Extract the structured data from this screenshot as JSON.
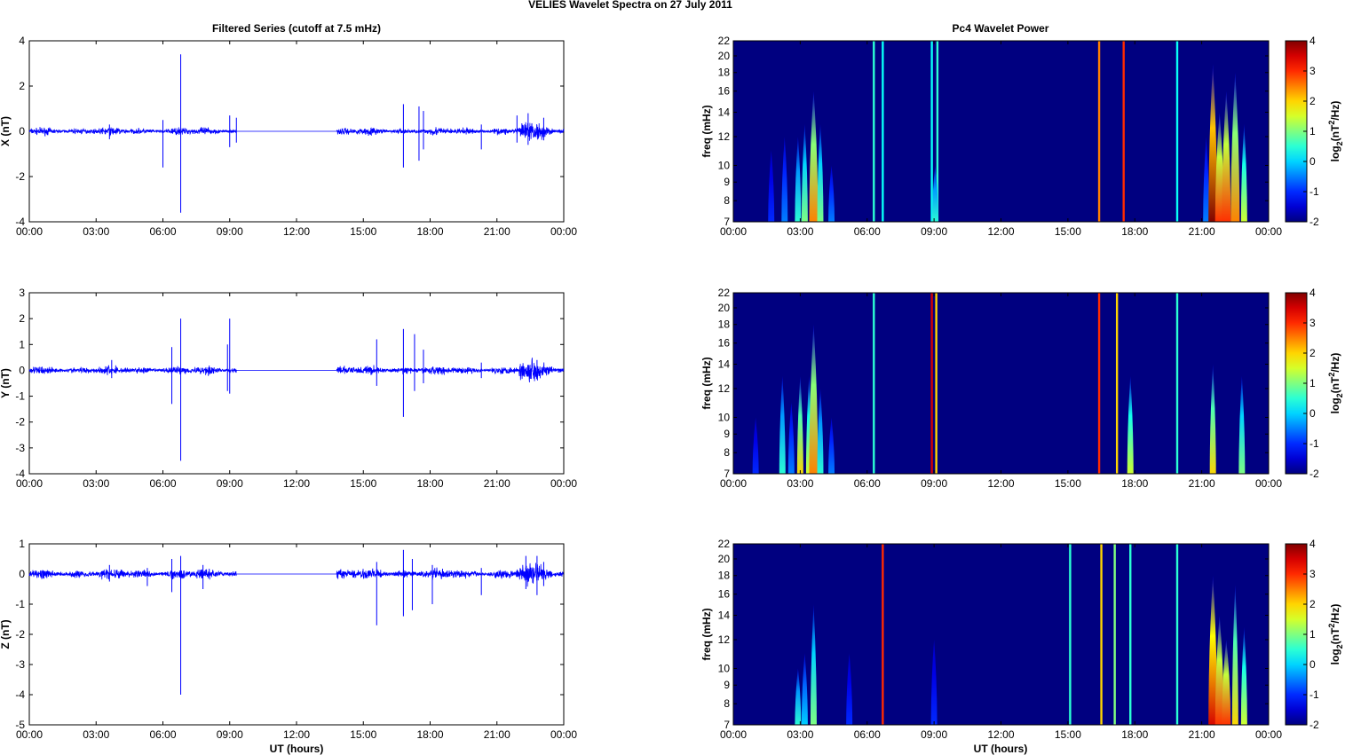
{
  "title": "VELIES Wavelet Spectra on 27 July     2011",
  "chart_data": [
    {
      "type": "line",
      "title": "Filtered Series (cutoff at 7.5 mHz)",
      "xlabel": "UT (hours)",
      "x_ticks": [
        "00:00",
        "03:00",
        "06:00",
        "09:00",
        "12:00",
        "15:00",
        "18:00",
        "21:00",
        "00:00"
      ],
      "xlim_hours": [
        0,
        24
      ],
      "data_gap_hours": [
        9.3,
        13.8
      ],
      "panels": [
        {
          "ylabel": "X (nT)",
          "ylim": [
            -4,
            4
          ],
          "y_ticks": [
            "4",
            "2",
            "0",
            "-2",
            "-4"
          ],
          "noise_amplitude": 0.08,
          "spikes": [
            [
              3.6,
              0.3,
              -0.35
            ],
            [
              6.0,
              0.5,
              -1.6
            ],
            [
              6.8,
              3.4,
              -3.6
            ],
            [
              9.0,
              0.7,
              -0.7
            ],
            [
              9.3,
              0.6,
              -0.5
            ],
            [
              16.8,
              1.2,
              -1.6
            ],
            [
              17.5,
              1.1,
              -1.3
            ],
            [
              17.7,
              0.9,
              -0.8
            ],
            [
              20.3,
              0.3,
              -0.8
            ],
            [
              21.9,
              0.7,
              -0.5
            ],
            [
              22.4,
              0.8,
              -0.6
            ],
            [
              23.1,
              0.6,
              -0.4
            ]
          ]
        },
        {
          "ylabel": "Y (nT)",
          "ylim": [
            -4,
            3
          ],
          "y_ticks": [
            "3",
            "2",
            "1",
            "0",
            "-1",
            "-2",
            "-3",
            "-4"
          ],
          "noise_amplitude": 0.08,
          "spikes": [
            [
              3.7,
              0.4,
              -0.3
            ],
            [
              6.4,
              0.9,
              -1.3
            ],
            [
              6.8,
              2.0,
              -3.5
            ],
            [
              8.9,
              1.0,
              -0.8
            ],
            [
              9.0,
              2.0,
              -0.9
            ],
            [
              15.6,
              1.2,
              -0.6
            ],
            [
              16.8,
              1.6,
              -1.8
            ],
            [
              17.3,
              1.4,
              -0.8
            ],
            [
              17.7,
              0.8,
              -0.5
            ],
            [
              20.3,
              0.3,
              -0.3
            ],
            [
              22.8,
              0.4,
              -0.3
            ]
          ]
        },
        {
          "ylabel": "Z (nT)",
          "ylim": [
            -5,
            1
          ],
          "y_ticks": [
            "1",
            "0",
            "-1",
            "-2",
            "-3",
            "-4",
            "-5"
          ],
          "noise_amplitude": 0.08,
          "spikes": [
            [
              3.6,
              0.3,
              -0.25
            ],
            [
              5.3,
              0.2,
              -0.4
            ],
            [
              6.4,
              0.5,
              -0.6
            ],
            [
              6.8,
              0.6,
              -4.0
            ],
            [
              7.8,
              0.3,
              -0.5
            ],
            [
              15.6,
              0.4,
              -1.7
            ],
            [
              16.8,
              0.8,
              -1.4
            ],
            [
              17.2,
              0.5,
              -1.2
            ],
            [
              18.1,
              0.3,
              -1.0
            ],
            [
              20.3,
              0.2,
              -0.7
            ],
            [
              22.3,
              0.6,
              -0.5
            ],
            [
              22.8,
              0.6,
              -0.7
            ],
            [
              23.1,
              0.4,
              -0.4
            ]
          ]
        }
      ]
    },
    {
      "type": "heatmap",
      "title": "Pc4 Wavelet Power",
      "xlabel": "UT (hours)",
      "ylabel": "freq (mHz)",
      "x_ticks": [
        "00:00",
        "03:00",
        "06:00",
        "09:00",
        "12:00",
        "15:00",
        "18:00",
        "21:00",
        "00:00"
      ],
      "y_ticks": [
        22,
        20,
        18,
        16,
        14,
        12,
        10,
        9,
        8,
        7
      ],
      "ylim_mHz": [
        7,
        22
      ],
      "colorbar": {
        "label": "log2(nT2/Hz)",
        "label_main": "log",
        "label_sub": "2",
        "label_rest": "(nT",
        "label_sup": "2",
        "label_end": "/Hz)",
        "range": [
          -2,
          4
        ],
        "ticks": [
          "4",
          "3",
          "2",
          "1",
          "0",
          "-1",
          "-2"
        ]
      },
      "panels": [
        {
          "bursts": [
            [
              1.7,
              11,
              -1
            ],
            [
              2.3,
              12,
              -0.5
            ],
            [
              2.9,
              12,
              0.5
            ],
            [
              3.2,
              13,
              1
            ],
            [
              3.6,
              16,
              2.5
            ],
            [
              3.9,
              13,
              1
            ],
            [
              4.4,
              10,
              -0.5
            ],
            [
              6.3,
              22,
              0.5
            ],
            [
              6.7,
              22,
              0.3
            ],
            [
              8.9,
              22,
              0.3
            ],
            [
              9.15,
              22,
              0.5
            ],
            [
              9.05,
              10,
              0.5
            ],
            [
              16.4,
              22,
              2.5
            ],
            [
              17.5,
              22,
              3
            ],
            [
              19.9,
              22,
              0.3
            ],
            [
              21.2,
              12,
              -0.5
            ],
            [
              21.5,
              19,
              4
            ],
            [
              21.8,
              14,
              3
            ],
            [
              22.1,
              16,
              3
            ],
            [
              22.5,
              18,
              2.5
            ],
            [
              22.9,
              13,
              1.5
            ]
          ]
        },
        {
          "bursts": [
            [
              1.0,
              10,
              -1
            ],
            [
              2.2,
              13,
              0.5
            ],
            [
              2.6,
              11,
              -0.5
            ],
            [
              3.0,
              13,
              2
            ],
            [
              3.4,
              13,
              1.5
            ],
            [
              3.6,
              18,
              2.5
            ],
            [
              3.9,
              12,
              0.5
            ],
            [
              4.4,
              10,
              -0.5
            ],
            [
              6.3,
              22,
              0.5
            ],
            [
              8.9,
              22,
              3.5
            ],
            [
              9.1,
              22,
              2
            ],
            [
              16.4,
              22,
              3
            ],
            [
              17.2,
              22,
              2
            ],
            [
              17.8,
              13,
              1.5
            ],
            [
              19.9,
              22,
              0.5
            ],
            [
              21.5,
              14,
              2
            ],
            [
              22.8,
              13,
              1
            ]
          ]
        },
        {
          "bursts": [
            [
              2.9,
              10,
              0.5
            ],
            [
              3.2,
              11,
              0
            ],
            [
              3.6,
              15,
              1
            ],
            [
              5.2,
              11,
              -1
            ],
            [
              6.7,
              22,
              3
            ],
            [
              9.0,
              12,
              -1
            ],
            [
              15.1,
              22,
              0.5
            ],
            [
              16.5,
              22,
              2
            ],
            [
              17.1,
              22,
              1
            ],
            [
              17.8,
              22,
              0.5
            ],
            [
              19.9,
              22,
              0.5
            ],
            [
              21.5,
              18,
              3.5
            ],
            [
              21.8,
              14,
              3
            ],
            [
              22.1,
              12,
              3
            ],
            [
              22.5,
              17,
              2
            ],
            [
              22.9,
              13,
              1.5
            ]
          ]
        }
      ]
    }
  ]
}
